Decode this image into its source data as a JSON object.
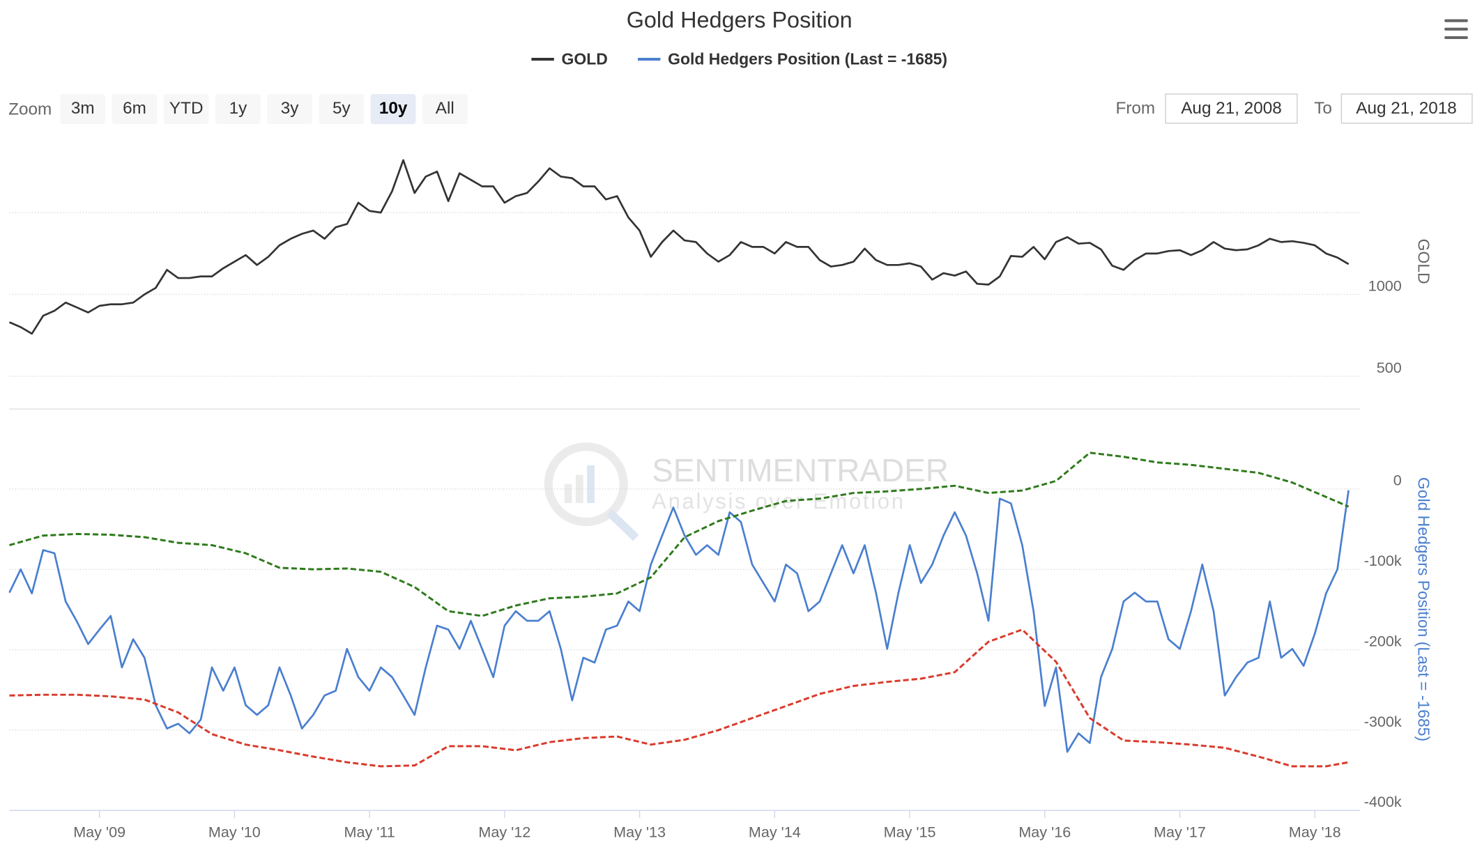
{
  "range_selector": {
    "zoom_label": "Zoom",
    "buttons": [
      "3m",
      "6m",
      "YTD",
      "1y",
      "3y",
      "5y",
      "10y",
      "All"
    ],
    "selected": 6,
    "from_label": "From",
    "from": "Aug 21, 2008",
    "to_label": "To",
    "to": "Aug 21, 2018"
  },
  "watermark": {
    "name": "SENTIMENTRADER",
    "tagline": "Analysis over Emotion"
  },
  "chart_data": [
    {
      "type": "line",
      "title": "Gold Hedgers Position",
      "ylabel": "GOLD",
      "xlim": [
        "2008-09",
        "2018-09"
      ],
      "x": [
        "2008-09",
        "2008-10",
        "2008-11",
        "2008-12",
        "2009-01",
        "2009-02",
        "2009-03",
        "2009-04",
        "2009-05",
        "2009-06",
        "2009-07",
        "2009-08",
        "2009-09",
        "2009-10",
        "2009-11",
        "2009-12",
        "2010-01",
        "2010-02",
        "2010-03",
        "2010-04",
        "2010-05",
        "2010-06",
        "2010-07",
        "2010-08",
        "2010-09",
        "2010-10",
        "2010-11",
        "2010-12",
        "2011-01",
        "2011-02",
        "2011-03",
        "2011-04",
        "2011-05",
        "2011-06",
        "2011-07",
        "2011-08",
        "2011-09",
        "2011-10",
        "2011-11",
        "2011-12",
        "2012-01",
        "2012-02",
        "2012-03",
        "2012-04",
        "2012-05",
        "2012-06",
        "2012-07",
        "2012-08",
        "2012-09",
        "2012-10",
        "2012-11",
        "2012-12",
        "2013-01",
        "2013-02",
        "2013-03",
        "2013-04",
        "2013-05",
        "2013-06",
        "2013-07",
        "2013-08",
        "2013-09",
        "2013-10",
        "2013-11",
        "2013-12",
        "2014-01",
        "2014-02",
        "2014-03",
        "2014-04",
        "2014-05",
        "2014-06",
        "2014-07",
        "2014-08",
        "2014-09",
        "2014-10",
        "2014-11",
        "2014-12",
        "2015-01",
        "2015-02",
        "2015-03",
        "2015-04",
        "2015-05",
        "2015-06",
        "2015-07",
        "2015-08",
        "2015-09",
        "2015-10",
        "2015-11",
        "2015-12",
        "2016-01",
        "2016-02",
        "2016-03",
        "2016-04",
        "2016-05",
        "2016-06",
        "2016-07",
        "2016-08",
        "2016-09",
        "2016-10",
        "2016-11",
        "2016-12",
        "2017-01",
        "2017-02",
        "2017-03",
        "2017-04",
        "2017-05",
        "2017-06",
        "2017-07",
        "2017-08",
        "2017-09",
        "2017-10",
        "2017-11",
        "2017-12",
        "2018-01",
        "2018-02",
        "2018-03",
        "2018-04",
        "2018-05",
        "2018-06",
        "2018-07",
        "2018-08"
      ],
      "ylim": [
        300,
        2000
      ],
      "yticks": [
        500,
        1000
      ],
      "ygrid": [
        500,
        1000,
        1500
      ],
      "grid": true,
      "series": [
        {
          "name": "GOLD",
          "color": "#333333",
          "values": [
            830,
            800,
            760,
            870,
            900,
            950,
            920,
            890,
            930,
            940,
            940,
            950,
            1000,
            1040,
            1150,
            1100,
            1100,
            1110,
            1110,
            1160,
            1200,
            1240,
            1180,
            1230,
            1300,
            1340,
            1370,
            1390,
            1340,
            1410,
            1430,
            1560,
            1510,
            1500,
            1630,
            1820,
            1620,
            1720,
            1750,
            1570,
            1740,
            1700,
            1660,
            1660,
            1560,
            1600,
            1620,
            1690,
            1770,
            1720,
            1710,
            1660,
            1660,
            1580,
            1600,
            1470,
            1390,
            1230,
            1320,
            1390,
            1330,
            1320,
            1250,
            1200,
            1240,
            1320,
            1290,
            1290,
            1250,
            1320,
            1290,
            1290,
            1210,
            1170,
            1180,
            1200,
            1280,
            1210,
            1180,
            1180,
            1190,
            1170,
            1090,
            1130,
            1115,
            1140,
            1065,
            1060,
            1110,
            1235,
            1230,
            1290,
            1215,
            1320,
            1350,
            1310,
            1315,
            1275,
            1175,
            1150,
            1210,
            1250,
            1250,
            1265,
            1270,
            1240,
            1270,
            1320,
            1280,
            1270,
            1275,
            1300,
            1340,
            1320,
            1325,
            1315,
            1300,
            1250,
            1225,
            1185
          ]
        }
      ]
    },
    {
      "type": "line",
      "ylabel": "Gold Hedgers Position (Last = -1685)",
      "xlim": [
        "2008-09",
        "2018-09"
      ],
      "x": [
        "2008-09",
        "2008-10",
        "2008-11",
        "2008-12",
        "2009-01",
        "2009-02",
        "2009-03",
        "2009-04",
        "2009-05",
        "2009-06",
        "2009-07",
        "2009-08",
        "2009-09",
        "2009-10",
        "2009-11",
        "2009-12",
        "2010-01",
        "2010-02",
        "2010-03",
        "2010-04",
        "2010-05",
        "2010-06",
        "2010-07",
        "2010-08",
        "2010-09",
        "2010-10",
        "2010-11",
        "2010-12",
        "2011-01",
        "2011-02",
        "2011-03",
        "2011-04",
        "2011-05",
        "2011-06",
        "2011-07",
        "2011-08",
        "2011-09",
        "2011-10",
        "2011-11",
        "2011-12",
        "2012-01",
        "2012-02",
        "2012-03",
        "2012-04",
        "2012-05",
        "2012-06",
        "2012-07",
        "2012-08",
        "2012-09",
        "2012-10",
        "2012-11",
        "2012-12",
        "2013-01",
        "2013-02",
        "2013-03",
        "2013-04",
        "2013-05",
        "2013-06",
        "2013-07",
        "2013-08",
        "2013-09",
        "2013-10",
        "2013-11",
        "2013-12",
        "2014-01",
        "2014-02",
        "2014-03",
        "2014-04",
        "2014-05",
        "2014-06",
        "2014-07",
        "2014-08",
        "2014-09",
        "2014-10",
        "2014-11",
        "2014-12",
        "2015-01",
        "2015-02",
        "2015-03",
        "2015-04",
        "2015-05",
        "2015-06",
        "2015-07",
        "2015-08",
        "2015-09",
        "2015-10",
        "2015-11",
        "2015-12",
        "2016-01",
        "2016-02",
        "2016-03",
        "2016-04",
        "2016-05",
        "2016-06",
        "2016-07",
        "2016-08",
        "2016-09",
        "2016-10",
        "2016-11",
        "2016-12",
        "2017-01",
        "2017-02",
        "2017-03",
        "2017-04",
        "2017-05",
        "2017-06",
        "2017-07",
        "2017-08",
        "2017-09",
        "2017-10",
        "2017-11",
        "2017-12",
        "2018-01",
        "2018-02",
        "2018-03",
        "2018-04",
        "2018-05",
        "2018-06",
        "2018-07",
        "2018-08"
      ],
      "xticks": [
        {
          "value": "2009-05",
          "label": "May '09"
        },
        {
          "value": "2010-05",
          "label": "May '10"
        },
        {
          "value": "2011-05",
          "label": "May '11"
        },
        {
          "value": "2012-05",
          "label": "May '12"
        },
        {
          "value": "2013-05",
          "label": "May '13"
        },
        {
          "value": "2014-05",
          "label": "May '14"
        },
        {
          "value": "2015-05",
          "label": "May '15"
        },
        {
          "value": "2016-05",
          "label": "May '16"
        },
        {
          "value": "2017-05",
          "label": "May '17"
        },
        {
          "value": "2018-05",
          "label": "May '18"
        }
      ],
      "ylim": [
        -400000,
        100000
      ],
      "yticks": [
        0,
        {
          "value": -100000,
          "label": "-100k"
        },
        {
          "value": -200000,
          "label": "-200k"
        },
        {
          "value": -300000,
          "label": "-300k"
        },
        {
          "value": -400000,
          "label": "-400k"
        }
      ],
      "grid": true,
      "ylabel_color": "#4a7fcf",
      "series": [
        {
          "name": "Gold Hedgers Position (Last = -1685)",
          "color": "#4a7fcf",
          "values": [
            -129000,
            -100000,
            -130000,
            -76000,
            -80000,
            -140000,
            -165000,
            -193000,
            -175000,
            -158000,
            -222000,
            -187000,
            -210000,
            -269000,
            -298000,
            -292000,
            -304000,
            -287000,
            -222000,
            -251000,
            -222000,
            -269000,
            -281000,
            -269000,
            -222000,
            -257000,
            -298000,
            -281000,
            -257000,
            -251000,
            -199000,
            -234000,
            -251000,
            -222000,
            -234000,
            -257000,
            -281000,
            -222000,
            -170000,
            -175000,
            -199000,
            -164000,
            -199000,
            -234000,
            -170000,
            -152000,
            -164000,
            -164000,
            -152000,
            -199000,
            -263000,
            -210000,
            -216000,
            -175000,
            -170000,
            -140000,
            -152000,
            -94000,
            -58000,
            -23000,
            -58000,
            -82000,
            -70000,
            -82000,
            -29000,
            -41000,
            -94000,
            -117000,
            -140000,
            -94000,
            -105000,
            -152000,
            -140000,
            -105000,
            -70000,
            -105000,
            -70000,
            -129000,
            -199000,
            -129000,
            -70000,
            -117000,
            -94000,
            -58000,
            -29000,
            -58000,
            -105000,
            -164000,
            -12000,
            -18000,
            -70000,
            -152000,
            -270000,
            -222000,
            -327000,
            -304000,
            -316000,
            -234000,
            -199000,
            -140000,
            -129000,
            -140000,
            -140000,
            -187000,
            -199000,
            -152000,
            -94000,
            -152000,
            -257000,
            -234000,
            -216000,
            -210000,
            -140000,
            -210000,
            -199000,
            -220000,
            -180000,
            -130000,
            -100000,
            -1685
          ]
        },
        {
          "color": "#2e7a1c",
          "dashed": true,
          "x": [
            "2008-09",
            "2008-12",
            "2009-03",
            "2009-06",
            "2009-09",
            "2009-12",
            "2010-03",
            "2010-06",
            "2010-09",
            "2010-12",
            "2011-03",
            "2011-06",
            "2011-09",
            "2011-12",
            "2012-03",
            "2012-06",
            "2012-09",
            "2012-12",
            "2013-03",
            "2013-06",
            "2013-09",
            "2013-12",
            "2014-03",
            "2014-06",
            "2014-09",
            "2014-12",
            "2015-03",
            "2015-06",
            "2015-09",
            "2015-12",
            "2016-03",
            "2016-06",
            "2016-09",
            "2016-12",
            "2017-03",
            "2017-06",
            "2017-09",
            "2017-12",
            "2018-03",
            "2018-06",
            "2018-08"
          ],
          "values": [
            -70000,
            -58000,
            -56000,
            -57000,
            -60000,
            -67000,
            -70000,
            -80000,
            -98000,
            -100000,
            -99000,
            -103000,
            -122000,
            -152000,
            -158000,
            -145000,
            -136000,
            -134000,
            -130000,
            -110000,
            -60000,
            -40000,
            -27000,
            -15000,
            -12000,
            -5000,
            -3000,
            0,
            4000,
            -5000,
            -2000,
            10000,
            45000,
            40000,
            33000,
            30000,
            25000,
            20000,
            8000,
            -10000,
            -22000
          ]
        },
        {
          "color": "#d93a2b",
          "dashed": true,
          "x": [
            "2008-09",
            "2008-12",
            "2009-03",
            "2009-06",
            "2009-09",
            "2009-12",
            "2010-03",
            "2010-06",
            "2010-09",
            "2010-12",
            "2011-03",
            "2011-06",
            "2011-09",
            "2011-12",
            "2012-03",
            "2012-06",
            "2012-09",
            "2012-12",
            "2013-03",
            "2013-06",
            "2013-09",
            "2013-12",
            "2014-03",
            "2014-06",
            "2014-09",
            "2014-12",
            "2015-03",
            "2015-06",
            "2015-09",
            "2015-12",
            "2016-03",
            "2016-06",
            "2016-09",
            "2016-12",
            "2017-03",
            "2017-06",
            "2017-09",
            "2017-12",
            "2018-03",
            "2018-06",
            "2018-08"
          ],
          "values": [
            -257000,
            -256000,
            -256000,
            -258000,
            -262000,
            -278000,
            -305000,
            -318000,
            -325000,
            -333000,
            -340000,
            -345000,
            -344000,
            -320000,
            -320000,
            -325000,
            -315000,
            -310000,
            -308000,
            -318000,
            -312000,
            -300000,
            -285000,
            -270000,
            -255000,
            -245000,
            -240000,
            -236000,
            -228000,
            -190000,
            -175000,
            -215000,
            -285000,
            -313000,
            -315000,
            -318000,
            -322000,
            -333000,
            -345000,
            -345000,
            -340000
          ]
        }
      ]
    }
  ]
}
